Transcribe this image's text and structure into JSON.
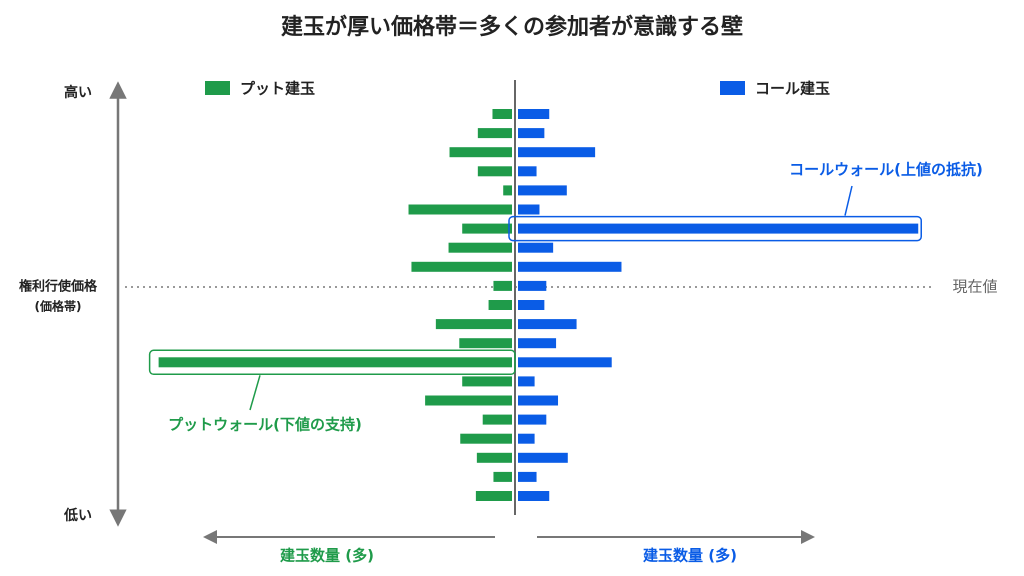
{
  "chart_data": {
    "type": "butterfly",
    "title": "建玉が厚い価格帯＝多くの参加者が意識する壁",
    "categories": [
      null,
      null,
      null,
      null,
      null,
      null,
      null,
      null,
      null,
      null,
      null,
      null,
      null,
      null,
      null,
      null,
      null,
      null,
      null,
      null,
      null
    ],
    "series": [
      {
        "name": "プット建玉",
        "color": "#1f9b4a",
        "side": "left",
        "values": [
          20,
          35,
          64,
          35,
          9,
          106,
          51,
          65,
          103,
          19,
          24,
          78,
          54,
          362,
          51,
          89,
          30,
          53,
          36,
          19,
          37
        ]
      },
      {
        "name": "コール建玉",
        "color": "#0a5ce6",
        "side": "right",
        "values": [
          32,
          27,
          79,
          19,
          50,
          22,
          410,
          36,
          106,
          29,
          27,
          60,
          39,
          96,
          17,
          41,
          29,
          17,
          51,
          19,
          32
        ]
      }
    ],
    "xlim": [
      0,
      420
    ],
    "y_axis_top": "高い",
    "y_axis_bottom": "低い",
    "y_axis_label": "権利行使価格",
    "y_axis_sublabel": "(価格帯)",
    "current_price_label": "現在値",
    "call_wall_label": "コールウォール(上値の抵抗)",
    "put_wall_label": "プットウォール(下値の支持)",
    "x_axis_left_label": "建玉数量 (多)",
    "x_axis_right_label": "建玉数量 (多)"
  }
}
